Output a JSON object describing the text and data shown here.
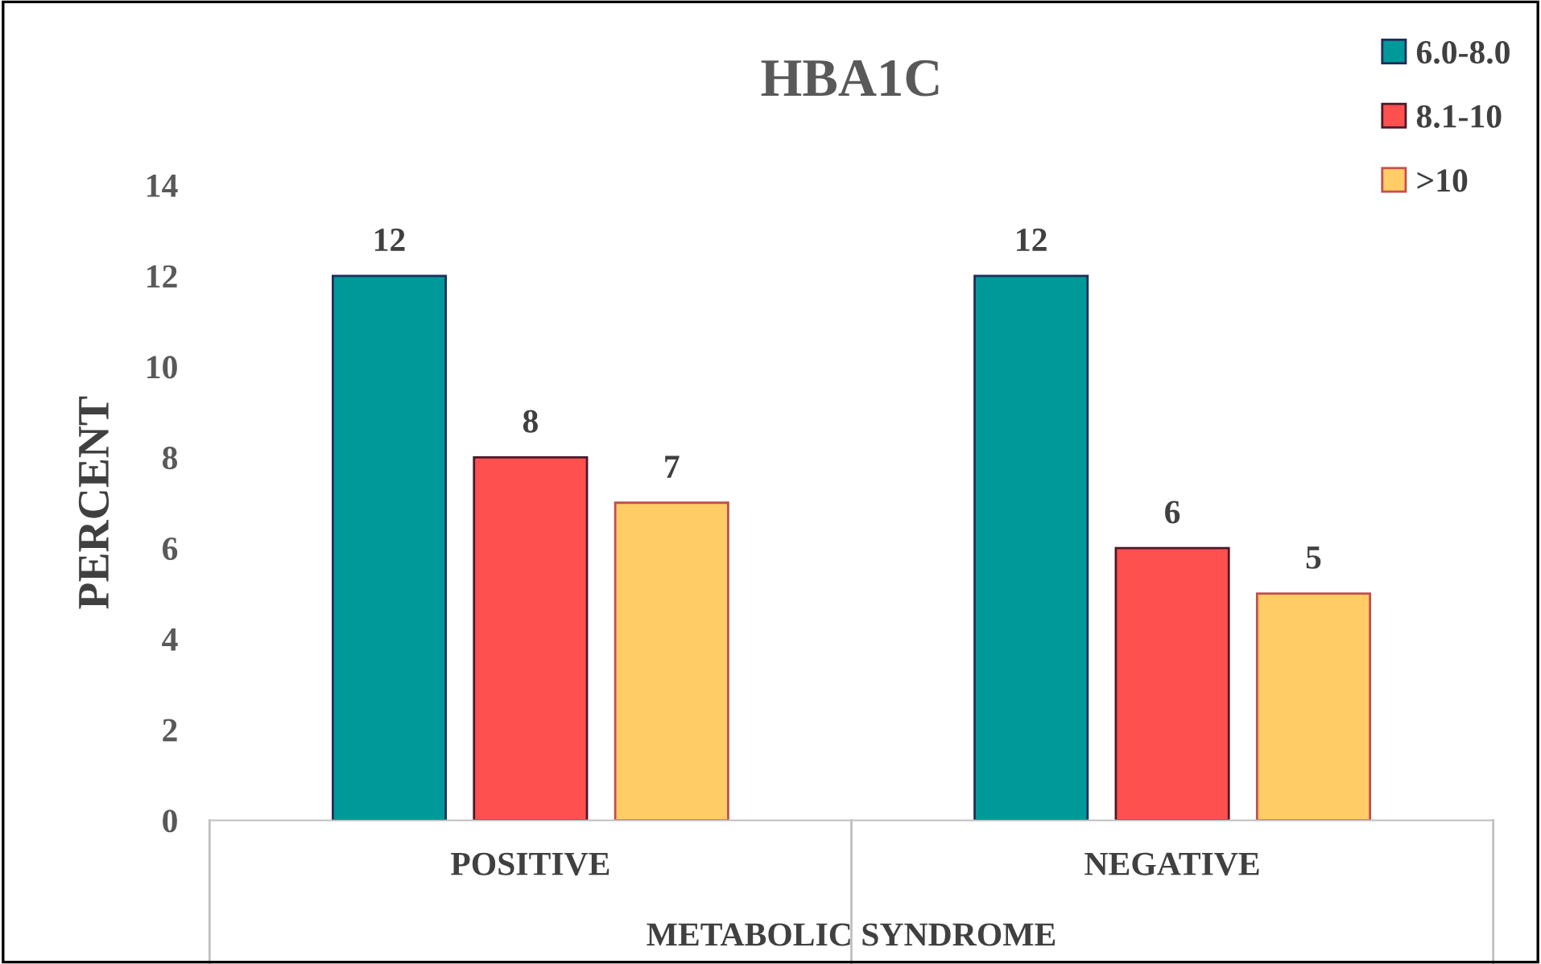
{
  "chart_data": {
    "type": "bar",
    "title": "HBA1C",
    "xlabel": "METABOLIC SYNDROME",
    "ylabel": "PERCENT",
    "categories": [
      "POSITIVE",
      "NEGATIVE"
    ],
    "series": [
      {
        "name": "6.0-8.0",
        "color": "#009999",
        "values": [
          12,
          12
        ]
      },
      {
        "name": "8.1-10",
        "color": "#ff5050",
        "values": [
          8,
          6
        ]
      },
      {
        "name": ">10",
        "color": "#ffcc66",
        "values": [
          7,
          5
        ]
      }
    ],
    "ylim": [
      0,
      14
    ],
    "yticks": [
      0,
      2,
      4,
      6,
      8,
      10,
      12,
      14
    ],
    "grid": false,
    "legend": "top right",
    "data_labels": true
  }
}
